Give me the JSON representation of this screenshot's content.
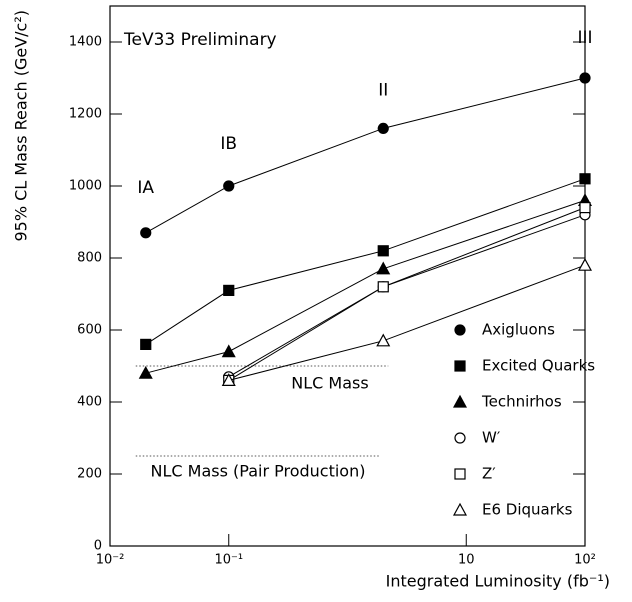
{
  "chart_data": {
    "type": "line",
    "title": "TeV33 Preliminary",
    "xlabel": "Integrated Luminosity (fb⁻¹)",
    "ylabel": "95% CL Mass Reach (GeV/c²)",
    "xscale": "log",
    "xlim": [
      0.01,
      100
    ],
    "ylim": [
      0,
      1500
    ],
    "xticks": [
      {
        "value": 0.01,
        "label": "10⁻²"
      },
      {
        "value": 0.1,
        "label": "10⁻¹"
      },
      10,
      {
        "value": 100,
        "label": "10²"
      }
    ],
    "yticks": [
      0,
      200,
      400,
      600,
      800,
      1000,
      1200,
      1400
    ],
    "x": [
      0.02,
      0.1,
      2,
      100
    ],
    "series": [
      {
        "name": "Axigluons",
        "color": "#000000",
        "marker": "circle",
        "filled": true,
        "values": [
          870,
          1000,
          1160,
          1300
        ]
      },
      {
        "name": "Excited Quarks",
        "color": "#000000",
        "marker": "square",
        "filled": true,
        "values": [
          560,
          710,
          820,
          1020
        ]
      },
      {
        "name": "Technirhos",
        "color": "#000000",
        "marker": "triangle",
        "filled": true,
        "values": [
          480,
          540,
          770,
          960
        ]
      },
      {
        "name": "W′",
        "color": "#000000",
        "marker": "circle",
        "filled": false,
        "values": [
          null,
          470,
          720,
          920
        ]
      },
      {
        "name": "Z′",
        "color": "#000000",
        "marker": "square",
        "filled": false,
        "values": [
          null,
          460,
          720,
          940
        ]
      },
      {
        "name": "E6 Diquarks",
        "color": "#000000",
        "marker": "triangle",
        "filled": false,
        "values": [
          null,
          460,
          570,
          780
        ]
      }
    ],
    "annotations": [
      "IA",
      "IB",
      "II",
      "III"
    ],
    "reference_lines": [
      {
        "label": "NLC Mass",
        "value": 500
      },
      {
        "label": "NLC Mass (Pair Production)",
        "value": 250
      }
    ]
  }
}
